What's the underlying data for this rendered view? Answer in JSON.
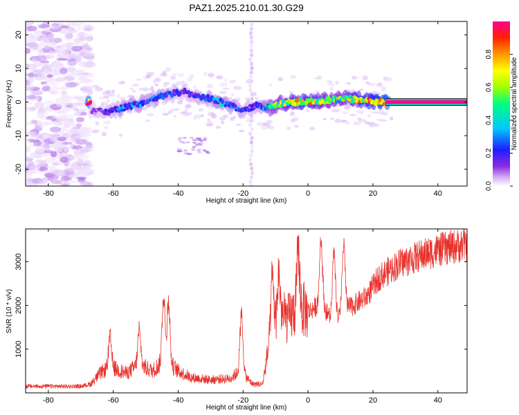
{
  "title": "PAZ1.2025.210.01.30.G29",
  "colors": {
    "snr_line": "#e8312c",
    "frame": "#000000",
    "background": "#ffffff"
  },
  "chart_data": [
    {
      "type": "heatmap",
      "xlabel": "Height of straight line (km)",
      "ylabel": "Frequency (Hz)",
      "xlim": [
        -87,
        49
      ],
      "ylim": [
        -25,
        24
      ],
      "x_ticks": [
        -80,
        -60,
        -40,
        -20,
        0,
        20,
        40
      ],
      "y_ticks": [
        -20,
        -10,
        0,
        10,
        20
      ],
      "colorbar": {
        "label": "Normalized spectral amplitude",
        "range": [
          0,
          1
        ],
        "ticks": [
          0.0,
          0.2,
          0.4,
          0.6,
          0.8
        ],
        "colormap": [
          "#ffffff",
          "#d7b4f5",
          "#8a2be2",
          "#1e1eff",
          "#00c8ff",
          "#00ff80",
          "#a0ff00",
          "#ffff00",
          "#ff9900",
          "#ff2200",
          "#ff0090"
        ]
      },
      "ridge": [
        {
          "x": -67,
          "f": -2.5,
          "a": 0.15
        },
        {
          "x": -62,
          "f": -3.0,
          "a": 0.25
        },
        {
          "x": -58,
          "f": -2.0,
          "a": 0.35
        },
        {
          "x": -54,
          "f": -1.0,
          "a": 0.35
        },
        {
          "x": -50,
          "f": 0.0,
          "a": 0.35
        },
        {
          "x": -46,
          "f": 1.5,
          "a": 0.35
        },
        {
          "x": -42,
          "f": 2.5,
          "a": 0.3
        },
        {
          "x": -38,
          "f": 3.0,
          "a": 0.25
        },
        {
          "x": -34,
          "f": 1.5,
          "a": 0.3
        },
        {
          "x": -30,
          "f": 1.0,
          "a": 0.35
        },
        {
          "x": -27,
          "f": 0.0,
          "a": 0.4
        },
        {
          "x": -24,
          "f": -1.0,
          "a": 0.35
        },
        {
          "x": -20,
          "f": -2.5,
          "a": 0.3
        },
        {
          "x": -16,
          "f": -1.0,
          "a": 0.25
        },
        {
          "x": -12,
          "f": -1.5,
          "a": 0.5
        },
        {
          "x": -8,
          "f": -0.5,
          "a": 0.6
        },
        {
          "x": -4,
          "f": 0.0,
          "a": 0.7
        },
        {
          "x": 0,
          "f": 0.0,
          "a": 0.75
        },
        {
          "x": 4,
          "f": 0.2,
          "a": 0.6
        },
        {
          "x": 8,
          "f": 0.8,
          "a": 0.55
        },
        {
          "x": 12,
          "f": 1.0,
          "a": 0.6
        },
        {
          "x": 16,
          "f": 0.6,
          "a": 0.75
        },
        {
          "x": 20,
          "f": 0.2,
          "a": 0.85
        },
        {
          "x": 24,
          "f": 0.0,
          "a": 0.95
        },
        {
          "x": 49,
          "f": 0.0,
          "a": 1.0
        }
      ],
      "noise_region_x": [
        -87,
        -67
      ],
      "side_feature": {
        "x": [
          -40,
          -30
        ],
        "f": -13
      }
    },
    {
      "type": "line",
      "xlabel": "Height of straight line (km)",
      "ylabel": "SNR (10 * v/v)",
      "xlim": [
        -87,
        49
      ],
      "ylim": [
        0,
        3750
      ],
      "x_ticks": [
        -80,
        -60,
        -40,
        -20,
        0,
        20,
        40
      ],
      "y_ticks": [
        1000,
        2000,
        3000
      ],
      "envelope": [
        {
          "x": -87,
          "y": 150
        },
        {
          "x": -70,
          "y": 150
        },
        {
          "x": -67,
          "y": 200
        },
        {
          "x": -64,
          "y": 450
        },
        {
          "x": -61,
          "y": 600
        },
        {
          "x": -56,
          "y": 450
        },
        {
          "x": -52,
          "y": 650
        },
        {
          "x": -48,
          "y": 500
        },
        {
          "x": -44,
          "y": 750
        },
        {
          "x": -40,
          "y": 500
        },
        {
          "x": -36,
          "y": 350
        },
        {
          "x": -30,
          "y": 300
        },
        {
          "x": -24,
          "y": 330
        },
        {
          "x": -21,
          "y": 500
        },
        {
          "x": -17,
          "y": 200
        },
        {
          "x": -14,
          "y": 200
        },
        {
          "x": -12,
          "y": 1100
        },
        {
          "x": -9,
          "y": 1750
        },
        {
          "x": -6,
          "y": 1700
        },
        {
          "x": -3,
          "y": 1950
        },
        {
          "x": 0,
          "y": 1850
        },
        {
          "x": 4,
          "y": 2050
        },
        {
          "x": 8,
          "y": 1600
        },
        {
          "x": 11,
          "y": 1900
        },
        {
          "x": 14,
          "y": 2000
        },
        {
          "x": 18,
          "y": 2200
        },
        {
          "x": 22,
          "y": 2650
        },
        {
          "x": 28,
          "y": 2950
        },
        {
          "x": 35,
          "y": 3150
        },
        {
          "x": 42,
          "y": 3300
        },
        {
          "x": 49,
          "y": 3400
        }
      ],
      "spikes": [
        {
          "x": -61,
          "y": 1350
        },
        {
          "x": -52,
          "y": 1500
        },
        {
          "x": -44.5,
          "y": 2450
        },
        {
          "x": -43,
          "y": 2300
        },
        {
          "x": -20.5,
          "y": 1950
        },
        {
          "x": -11,
          "y": 2750
        },
        {
          "x": -9,
          "y": 2800
        },
        {
          "x": -3,
          "y": 3300
        },
        {
          "x": 4,
          "y": 3750
        },
        {
          "x": 8,
          "y": 3400
        },
        {
          "x": 11,
          "y": 3550
        }
      ]
    }
  ]
}
